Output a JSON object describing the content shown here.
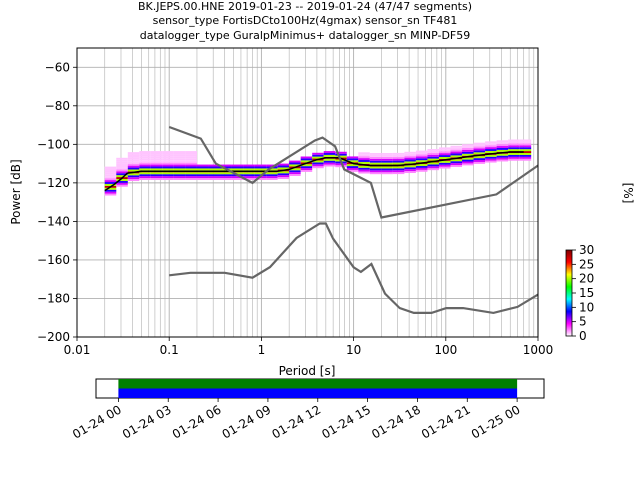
{
  "title_lines": [
    "BK.JEPS.00.HNE   2019-01-23 -- 2019-01-24  (47/47 segments)",
    "sensor_type FortisDCto100Hz(4gmax) sensor_sn TF481",
    "datalogger_type GuralpMinimus+ datalogger_sn MINP-DF59"
  ],
  "chart_data": {
    "type": "heatmap",
    "xlabel": "Period [s]",
    "ylabel": "Power [dB]",
    "xscale": "log",
    "xlim": [
      0.01,
      1000
    ],
    "ylim": [
      -200,
      -50
    ],
    "grid": true,
    "x_ticks": [
      {
        "value": 0.01,
        "label": "0.01"
      },
      {
        "value": 0.1,
        "label": "0.1"
      },
      {
        "value": 1,
        "label": "1"
      },
      {
        "value": 10,
        "label": "10"
      },
      {
        "value": 100,
        "label": "100"
      },
      {
        "value": 1000,
        "label": "1000"
      }
    ],
    "y_ticks": [
      -60,
      -80,
      -100,
      -120,
      -140,
      -160,
      -180,
      -200
    ],
    "colorbar": {
      "label": "[%]",
      "min": 0,
      "max": 30,
      "ticks": [
        0,
        5,
        10,
        15,
        20,
        25,
        30
      ],
      "colormap": [
        "#ffffff",
        "#ff00ff",
        "#0000ff",
        "#00ffff",
        "#00ff00",
        "#ffff00",
        "#ff0000",
        "#800000"
      ]
    },
    "series": [
      {
        "role": "mode",
        "color": "#000000",
        "points": [
          [
            0.02,
            -124
          ],
          [
            0.025,
            -121
          ],
          [
            0.03,
            -118
          ],
          [
            0.035,
            -115
          ],
          [
            0.05,
            -114
          ],
          [
            0.1,
            -114
          ],
          [
            0.2,
            -114
          ],
          [
            0.5,
            -114
          ],
          [
            1,
            -114
          ],
          [
            1.5,
            -114
          ],
          [
            2,
            -113
          ],
          [
            3,
            -110
          ],
          [
            4,
            -108
          ],
          [
            5,
            -107
          ],
          [
            6,
            -107
          ],
          [
            7,
            -107
          ],
          [
            10,
            -110
          ],
          [
            15,
            -111
          ],
          [
            20,
            -111
          ],
          [
            30,
            -111
          ],
          [
            50,
            -110
          ],
          [
            100,
            -108
          ],
          [
            200,
            -106
          ],
          [
            300,
            -105
          ],
          [
            500,
            -104
          ],
          [
            700,
            -104
          ]
        ]
      },
      {
        "role": "noise-model-high",
        "color": "#666666",
        "points": [
          [
            0.1,
            -91
          ],
          [
            0.22,
            -97
          ],
          [
            0.32,
            -110
          ],
          [
            0.8,
            -120
          ],
          [
            1.2,
            -113
          ],
          [
            3.8,
            -98
          ],
          [
            4.6,
            -96.5
          ],
          [
            6.3,
            -101
          ],
          [
            7.9,
            -113
          ],
          [
            15.4,
            -120
          ],
          [
            20,
            -138
          ],
          [
            354,
            -126
          ],
          [
            1000,
            -111
          ]
        ]
      },
      {
        "role": "noise-model-low",
        "color": "#666666",
        "points": [
          [
            0.1,
            -168
          ],
          [
            0.17,
            -166.7
          ],
          [
            0.4,
            -166.7
          ],
          [
            0.8,
            -169.2
          ],
          [
            1.24,
            -163.7
          ],
          [
            2.4,
            -148.6
          ],
          [
            4.3,
            -141.1
          ],
          [
            5,
            -141.1
          ],
          [
            6,
            -149
          ],
          [
            10,
            -163.8
          ],
          [
            12,
            -166.2
          ],
          [
            15.6,
            -162.1
          ],
          [
            21.9,
            -177.5
          ],
          [
            31.6,
            -185
          ],
          [
            45,
            -187.5
          ],
          [
            70,
            -187.5
          ],
          [
            101,
            -185
          ],
          [
            154,
            -185
          ],
          [
            328,
            -187.5
          ],
          [
            600,
            -184.4
          ],
          [
            1000,
            -178
          ]
        ]
      }
    ],
    "time_axis": {
      "labels": [
        "01-24 00",
        "01-24 03",
        "01-24 06",
        "01-24 09",
        "01-24 12",
        "01-24 15",
        "01-24 18",
        "01-24 21",
        "01-25 00"
      ],
      "data_fraction": [
        0.05,
        0.94
      ],
      "bars": [
        {
          "name": "data",
          "color": "#008000"
        },
        {
          "name": "gaps",
          "color": "#0000ff"
        }
      ]
    }
  }
}
